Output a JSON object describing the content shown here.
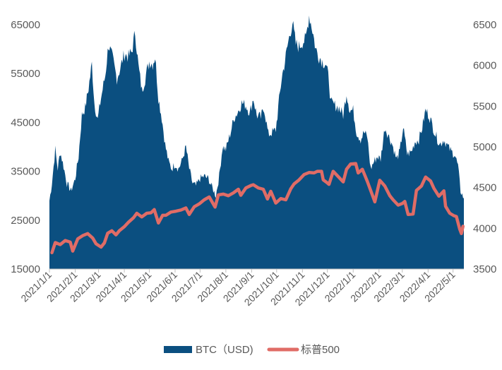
{
  "chart_data": {
    "type": "area",
    "title": "",
    "xlabel": "",
    "left_axis": {
      "min": 15000,
      "max": 65000,
      "ticks": [
        15000,
        25000,
        35000,
        45000,
        55000,
        65000
      ]
    },
    "right_axis": {
      "min": 3500,
      "max": 6500,
      "ticks": [
        3500,
        4000,
        4500,
        5000,
        5500,
        6000,
        6500
      ]
    },
    "x_date_range": [
      "2021/1/1",
      "2022/5/14"
    ],
    "x_tick_labels": [
      "2021/1/1",
      "2021/2/1",
      "2021/3/1",
      "2021/4/1",
      "2021/5/1",
      "2021/6/1",
      "2021/7/1",
      "2021/8/1",
      "2021/9/1",
      "2021/10/1",
      "2021/11/1",
      "2021/12/1",
      "2022/1/1",
      "2022/2/1",
      "2022/3/1",
      "2022/4/1",
      "2022/5/1"
    ],
    "grid": false,
    "legend_position": "bottom",
    "series": [
      {
        "name": "BTC（USD)",
        "kind": "area",
        "axis": "left",
        "color": "#0b4f80",
        "points": [
          [
            "2021/1/1",
            29000
          ],
          [
            "2021/1/4",
            32500
          ],
          [
            "2021/1/8",
            39500
          ],
          [
            "2021/1/11",
            35500
          ],
          [
            "2021/1/14",
            39000
          ],
          [
            "2021/1/18",
            36000
          ],
          [
            "2021/1/22",
            32500
          ],
          [
            "2021/1/27",
            31000
          ],
          [
            "2021/2/1",
            33500
          ],
          [
            "2021/2/5",
            38000
          ],
          [
            "2021/2/9",
            46500
          ],
          [
            "2021/2/13",
            48000
          ],
          [
            "2021/2/17",
            52000
          ],
          [
            "2021/2/21",
            57000
          ],
          [
            "2021/2/24",
            49000
          ],
          [
            "2021/2/28",
            45500
          ],
          [
            "2021/3/4",
            50000
          ],
          [
            "2021/3/9",
            54500
          ],
          [
            "2021/3/13",
            61000
          ],
          [
            "2021/3/18",
            58000
          ],
          [
            "2021/3/23",
            54000
          ],
          [
            "2021/3/27",
            56000
          ],
          [
            "2021/4/1",
            59000
          ],
          [
            "2021/4/6",
            58500
          ],
          [
            "2021/4/10",
            59500
          ],
          [
            "2021/4/14",
            63500
          ],
          [
            "2021/4/18",
            56500
          ],
          [
            "2021/4/22",
            51500
          ],
          [
            "2021/4/26",
            54000
          ],
          [
            "2021/5/1",
            57500
          ],
          [
            "2021/5/5",
            57000
          ],
          [
            "2021/5/8",
            58500
          ],
          [
            "2021/5/12",
            50000
          ],
          [
            "2021/5/16",
            46000
          ],
          [
            "2021/5/20",
            40500
          ],
          [
            "2021/5/24",
            37000
          ],
          [
            "2021/5/28",
            35500
          ],
          [
            "2021/6/1",
            36500
          ],
          [
            "2021/6/5",
            35500
          ],
          [
            "2021/6/9",
            37000
          ],
          [
            "2021/6/14",
            40000
          ],
          [
            "2021/6/18",
            35500
          ],
          [
            "2021/6/22",
            32500
          ],
          [
            "2021/6/26",
            32000
          ],
          [
            "2021/7/1",
            33500
          ],
          [
            "2021/7/6",
            34000
          ],
          [
            "2021/7/11",
            33500
          ],
          [
            "2021/7/16",
            31500
          ],
          [
            "2021/7/20",
            30000
          ],
          [
            "2021/7/24",
            34000
          ],
          [
            "2021/7/28",
            40000
          ],
          [
            "2021/8/1",
            39500
          ],
          [
            "2021/8/6",
            42500
          ],
          [
            "2021/8/11",
            46000
          ],
          [
            "2021/8/15",
            47000
          ],
          [
            "2021/8/20",
            49000
          ],
          [
            "2021/8/25",
            48500
          ],
          [
            "2021/8/30",
            47000
          ],
          [
            "2021/9/3",
            50000
          ],
          [
            "2021/9/7",
            46500
          ],
          [
            "2021/9/12",
            46000
          ],
          [
            "2021/9/16",
            48000
          ],
          [
            "2021/9/21",
            42500
          ],
          [
            "2021/9/26",
            43000
          ],
          [
            "2021/9/30",
            43500
          ],
          [
            "2021/10/3",
            48000
          ],
          [
            "2021/10/7",
            54000
          ],
          [
            "2021/10/11",
            57500
          ],
          [
            "2021/10/15",
            61500
          ],
          [
            "2021/10/20",
            65500
          ],
          [
            "2021/10/24",
            61000
          ],
          [
            "2021/10/28",
            60500
          ],
          [
            "2021/11/1",
            61500
          ],
          [
            "2021/11/5",
            62000
          ],
          [
            "2021/11/9",
            67000
          ],
          [
            "2021/11/13",
            64000
          ],
          [
            "2021/11/17",
            60000
          ],
          [
            "2021/11/21",
            58500
          ],
          [
            "2021/11/25",
            57500
          ],
          [
            "2021/11/29",
            57000
          ],
          [
            "2021/12/3",
            53500
          ],
          [
            "2021/12/5",
            49000
          ],
          [
            "2021/12/10",
            48500
          ],
          [
            "2021/12/15",
            48000
          ],
          [
            "2021/12/20",
            46500
          ],
          [
            "2021/12/24",
            51000
          ],
          [
            "2021/12/28",
            47500
          ],
          [
            "2022/1/1",
            47500
          ],
          [
            "2022/1/5",
            43000
          ],
          [
            "2022/1/10",
            41500
          ],
          [
            "2022/1/14",
            43000
          ],
          [
            "2022/1/18",
            42000
          ],
          [
            "2022/1/22",
            35500
          ],
          [
            "2022/1/26",
            37000
          ],
          [
            "2022/1/30",
            38000
          ],
          [
            "2022/2/3",
            37500
          ],
          [
            "2022/2/8",
            44000
          ],
          [
            "2022/2/12",
            42500
          ],
          [
            "2022/2/17",
            40500
          ],
          [
            "2022/2/22",
            37500
          ],
          [
            "2022/2/26",
            39000
          ],
          [
            "2022/3/2",
            44000
          ],
          [
            "2022/3/7",
            38500
          ],
          [
            "2022/3/12",
            39000
          ],
          [
            "2022/3/16",
            41000
          ],
          [
            "2022/3/21",
            41500
          ],
          [
            "2022/3/25",
            44000
          ],
          [
            "2022/3/29",
            47500
          ],
          [
            "2022/4/2",
            46500
          ],
          [
            "2022/4/6",
            44500
          ],
          [
            "2022/4/10",
            42500
          ],
          [
            "2022/4/15",
            40500
          ],
          [
            "2022/4/20",
            41500
          ],
          [
            "2022/4/25",
            40000
          ],
          [
            "2022/4/29",
            39000
          ],
          [
            "2022/5/3",
            38500
          ],
          [
            "2022/5/7",
            36000
          ],
          [
            "2022/5/10",
            31000
          ],
          [
            "2022/5/14",
            29500
          ]
        ]
      },
      {
        "name": "标普500",
        "kind": "line",
        "axis": "right",
        "color": "#e06c66",
        "points": [
          [
            "2021/1/4",
            3700
          ],
          [
            "2021/1/8",
            3825
          ],
          [
            "2021/1/14",
            3800
          ],
          [
            "2021/1/20",
            3850
          ],
          [
            "2021/1/26",
            3830
          ],
          [
            "2021/1/29",
            3720
          ],
          [
            "2021/2/4",
            3870
          ],
          [
            "2021/2/10",
            3910
          ],
          [
            "2021/2/16",
            3935
          ],
          [
            "2021/2/22",
            3880
          ],
          [
            "2021/2/26",
            3810
          ],
          [
            "2021/3/4",
            3770
          ],
          [
            "2021/3/8",
            3820
          ],
          [
            "2021/3/12",
            3940
          ],
          [
            "2021/3/17",
            3970
          ],
          [
            "2021/3/22",
            3920
          ],
          [
            "2021/3/26",
            3970
          ],
          [
            "2021/4/1",
            4020
          ],
          [
            "2021/4/6",
            4075
          ],
          [
            "2021/4/12",
            4130
          ],
          [
            "2021/4/16",
            4185
          ],
          [
            "2021/4/22",
            4140
          ],
          [
            "2021/4/28",
            4185
          ],
          [
            "2021/5/3",
            4190
          ],
          [
            "2021/5/7",
            4230
          ],
          [
            "2021/5/12",
            4065
          ],
          [
            "2021/5/17",
            4160
          ],
          [
            "2021/5/21",
            4160
          ],
          [
            "2021/5/27",
            4200
          ],
          [
            "2021/6/2",
            4210
          ],
          [
            "2021/6/8",
            4225
          ],
          [
            "2021/6/14",
            4250
          ],
          [
            "2021/6/18",
            4170
          ],
          [
            "2021/6/24",
            4265
          ],
          [
            "2021/6/30",
            4300
          ],
          [
            "2021/7/6",
            4350
          ],
          [
            "2021/7/12",
            4385
          ],
          [
            "2021/7/19",
            4260
          ],
          [
            "2021/7/23",
            4410
          ],
          [
            "2021/7/29",
            4420
          ],
          [
            "2021/8/4",
            4400
          ],
          [
            "2021/8/10",
            4435
          ],
          [
            "2021/8/16",
            4480
          ],
          [
            "2021/8/19",
            4405
          ],
          [
            "2021/8/25",
            4495
          ],
          [
            "2021/8/31",
            4525
          ],
          [
            "2021/9/3",
            4535
          ],
          [
            "2021/9/9",
            4495
          ],
          [
            "2021/9/15",
            4480
          ],
          [
            "2021/9/20",
            4360
          ],
          [
            "2021/9/24",
            4455
          ],
          [
            "2021/9/30",
            4310
          ],
          [
            "2021/10/6",
            4365
          ],
          [
            "2021/10/12",
            4350
          ],
          [
            "2021/10/18",
            4485
          ],
          [
            "2021/10/22",
            4545
          ],
          [
            "2021/10/28",
            4595
          ],
          [
            "2021/11/3",
            4660
          ],
          [
            "2021/11/9",
            4685
          ],
          [
            "2021/11/15",
            4680
          ],
          [
            "2021/11/19",
            4700
          ],
          [
            "2021/11/24",
            4700
          ],
          [
            "2021/11/26",
            4595
          ],
          [
            "2021/11/30",
            4565
          ],
          [
            "2021/12/3",
            4540
          ],
          [
            "2021/12/8",
            4700
          ],
          [
            "2021/12/14",
            4635
          ],
          [
            "2021/12/20",
            4570
          ],
          [
            "2021/12/24",
            4725
          ],
          [
            "2021/12/29",
            4790
          ],
          [
            "2022/1/4",
            4795
          ],
          [
            "2022/1/7",
            4680
          ],
          [
            "2022/1/12",
            4725
          ],
          [
            "2022/1/18",
            4575
          ],
          [
            "2022/1/24",
            4410
          ],
          [
            "2022/1/27",
            4325
          ],
          [
            "2022/2/2",
            4590
          ],
          [
            "2022/2/8",
            4520
          ],
          [
            "2022/2/14",
            4400
          ],
          [
            "2022/2/18",
            4350
          ],
          [
            "2022/2/24",
            4285
          ],
          [
            "2022/3/1",
            4305
          ],
          [
            "2022/3/4",
            4330
          ],
          [
            "2022/3/8",
            4170
          ],
          [
            "2022/3/14",
            4175
          ],
          [
            "2022/3/18",
            4465
          ],
          [
            "2022/3/24",
            4520
          ],
          [
            "2022/3/29",
            4630
          ],
          [
            "2022/4/4",
            4580
          ],
          [
            "2022/4/8",
            4490
          ],
          [
            "2022/4/14",
            4395
          ],
          [
            "2022/4/20",
            4460
          ],
          [
            "2022/4/22",
            4270
          ],
          [
            "2022/4/27",
            4185
          ],
          [
            "2022/5/2",
            4155
          ],
          [
            "2022/5/5",
            4145
          ],
          [
            "2022/5/9",
            3990
          ],
          [
            "2022/5/11",
            3935
          ],
          [
            "2022/5/13",
            4025
          ]
        ]
      }
    ]
  }
}
